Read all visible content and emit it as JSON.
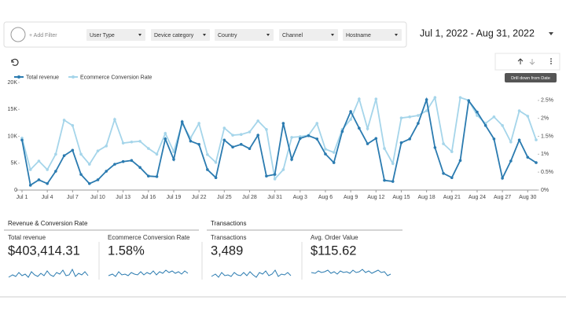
{
  "filter_bar": {
    "add_filter": "+ Add Filter",
    "filters": [
      "User Type",
      "Device category",
      "Country",
      "Channel",
      "Hostname"
    ]
  },
  "date_range": "Jul 1, 2022 - Aug 31, 2022",
  "tooltip": "Drill down from Date",
  "chart_data": {
    "type": "line",
    "categories": [
      "Jul 1",
      null,
      null,
      "Jul 4",
      null,
      null,
      "Jul 7",
      null,
      null,
      "Jul 10",
      null,
      null,
      "Jul 13",
      null,
      null,
      "Jul 16",
      null,
      null,
      "Jul 19",
      null,
      null,
      "Jul 22",
      null,
      null,
      "Jul 25",
      null,
      null,
      "Jul 28",
      null,
      null,
      "Jul 31",
      null,
      null,
      "Aug 3",
      null,
      null,
      "Aug 6",
      null,
      null,
      "Aug 9",
      null,
      null,
      "Aug 12",
      null,
      null,
      "Aug 15",
      null,
      null,
      "Aug 18",
      null,
      null,
      "Aug 21",
      null,
      null,
      "Aug 24",
      null,
      null,
      "Aug 27",
      null,
      null,
      "Aug 30",
      null
    ],
    "series": [
      {
        "name": "Total revenue",
        "color": "#2b7bb0",
        "values": [
          9300,
          900,
          1900,
          1200,
          3500,
          6400,
          7400,
          2900,
          1200,
          1900,
          3500,
          4800,
          5300,
          5500,
          4200,
          2600,
          2500,
          9500,
          5700,
          12700,
          9100,
          8500,
          3800,
          2300,
          9300,
          8000,
          8500,
          7700,
          10200,
          2600,
          2900,
          12400,
          5700,
          9600,
          10100,
          9500,
          6700,
          5100,
          10900,
          14600,
          11500,
          8600,
          9600,
          1800,
          1600,
          8800,
          9500,
          12400,
          16800,
          7900,
          3100,
          2300,
          5500,
          16600,
          14500,
          12000,
          9500,
          2200,
          5400,
          9300,
          6100,
          5100
        ]
      },
      {
        "name": "Ecommerce Conversion Rate",
        "color": "#a5d5ea",
        "axis": "y2",
        "values": [
          1.45,
          0.57,
          0.81,
          0.57,
          1.0,
          1.95,
          1.8,
          1.0,
          0.72,
          1.09,
          1.23,
          1.97,
          1.31,
          1.34,
          1.36,
          1.16,
          1.0,
          1.58,
          1.07,
          1.86,
          1.45,
          1.86,
          0.99,
          0.77,
          1.73,
          1.53,
          1.55,
          1.62,
          1.93,
          1.69,
          0.31,
          0.57,
          1.47,
          1.49,
          1.53,
          1.86,
          1.14,
          1.05,
          1.69,
          1.97,
          2.54,
          1.71,
          2.54,
          1.16,
          0.74,
          2.01,
          2.04,
          2.08,
          2.21,
          2.58,
          1.29,
          1.07,
          2.58,
          2.5,
          2.08,
          1.86,
          2.04,
          1.8,
          1.34,
          2.21,
          2.06,
          1.4
        ]
      }
    ],
    "ylim": [
      0,
      20000
    ],
    "yticks": [
      0,
      {
        "value": 5000,
        "label": "5K"
      },
      {
        "value": 10000,
        "label": "10K"
      },
      {
        "value": 15000,
        "label": "15K"
      },
      {
        "value": 20000,
        "label": "20K"
      }
    ],
    "y2lim": [
      0,
      3
    ],
    "y2ticks": [
      {
        "value": 0,
        "label": "0%"
      },
      {
        "value": 0.5,
        "label": "0.5%"
      },
      {
        "value": 1,
        "label": "1%"
      },
      {
        "value": 1.5,
        "label": "1.5%"
      },
      {
        "value": 2,
        "label": "2%"
      },
      {
        "value": 2.5,
        "label": "2.5%"
      }
    ],
    "legend": "top-left"
  },
  "scorecard_groups": [
    {
      "title": "Revenue & Conversion Rate",
      "cards": [
        {
          "label": "Total revenue",
          "value": "$403,414.31"
        },
        {
          "label": "Ecommerce Conversion Rate",
          "value": "1.58%"
        }
      ]
    },
    {
      "title": "Transactions",
      "cards": [
        {
          "label": "Transactions",
          "value": "3,489"
        },
        {
          "label": "Avg. Order Value",
          "value": "$115.62"
        }
      ]
    }
  ]
}
